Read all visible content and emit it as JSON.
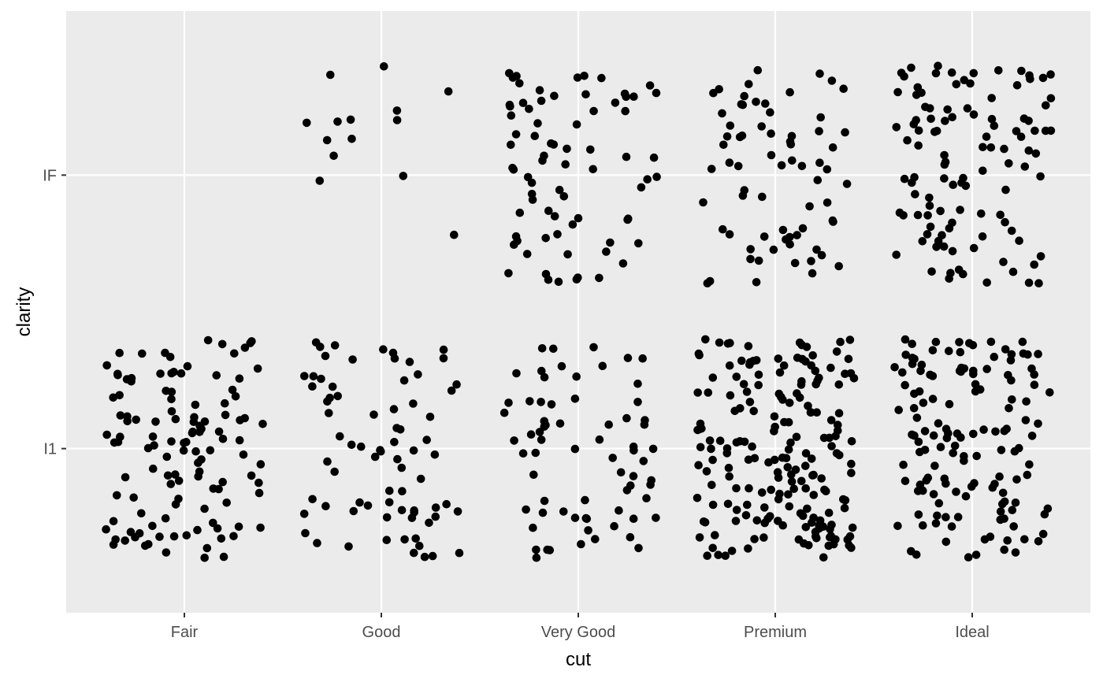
{
  "chart_data": {
    "type": "scatter",
    "title": "",
    "xlabel": "cut",
    "ylabel": "clarity",
    "x_categories": [
      "Fair",
      "Good",
      "Very Good",
      "Premium",
      "Ideal"
    ],
    "y_categories": [
      "I1",
      "IF"
    ],
    "jitter": true,
    "grid": true,
    "legend": "none",
    "colors": {
      "panel": "#ebebeb",
      "grid": "#ffffff",
      "point": "#000000",
      "tick": "#4d4d4d"
    },
    "groups": [
      {
        "cut": "Fair",
        "clarity": "I1",
        "n": 120,
        "seed": 11
      },
      {
        "cut": "Good",
        "clarity": "I1",
        "n": 75,
        "seed": 23
      },
      {
        "cut": "Good",
        "clarity": "IF",
        "n": 14,
        "seed": 37
      },
      {
        "cut": "Very Good",
        "clarity": "I1",
        "n": 70,
        "seed": 41
      },
      {
        "cut": "Very Good",
        "clarity": "IF",
        "n": 75,
        "seed": 53
      },
      {
        "cut": "Premium",
        "clarity": "I1",
        "n": 195,
        "seed": 67
      },
      {
        "cut": "Premium",
        "clarity": "IF",
        "n": 70,
        "seed": 71
      },
      {
        "cut": "Ideal",
        "clarity": "I1",
        "n": 140,
        "seed": 83
      },
      {
        "cut": "Ideal",
        "clarity": "IF",
        "n": 110,
        "seed": 97
      }
    ]
  }
}
